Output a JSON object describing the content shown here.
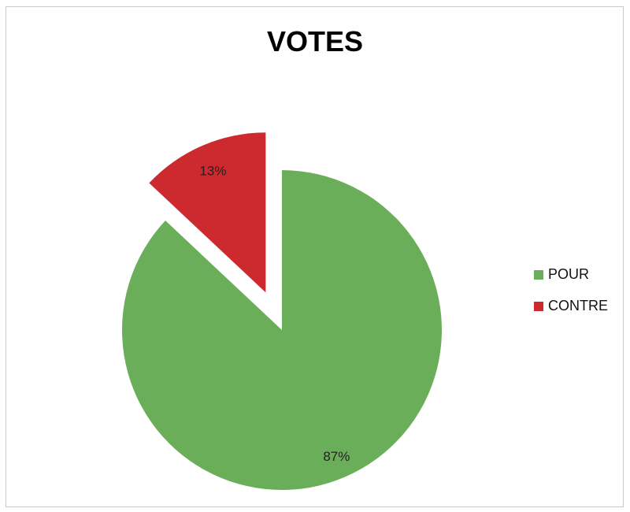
{
  "chart_data": {
    "type": "pie",
    "title": "VOTES",
    "categories": [
      "POUR",
      "CONTRE"
    ],
    "values": [
      87,
      13
    ],
    "value_labels": [
      "87%",
      "13%"
    ],
    "colors": [
      "#6aae59",
      "#cc2a2f"
    ],
    "exploded": [
      "CONTRE"
    ],
    "start_angle_deg": 0,
    "legend_position": "right"
  }
}
